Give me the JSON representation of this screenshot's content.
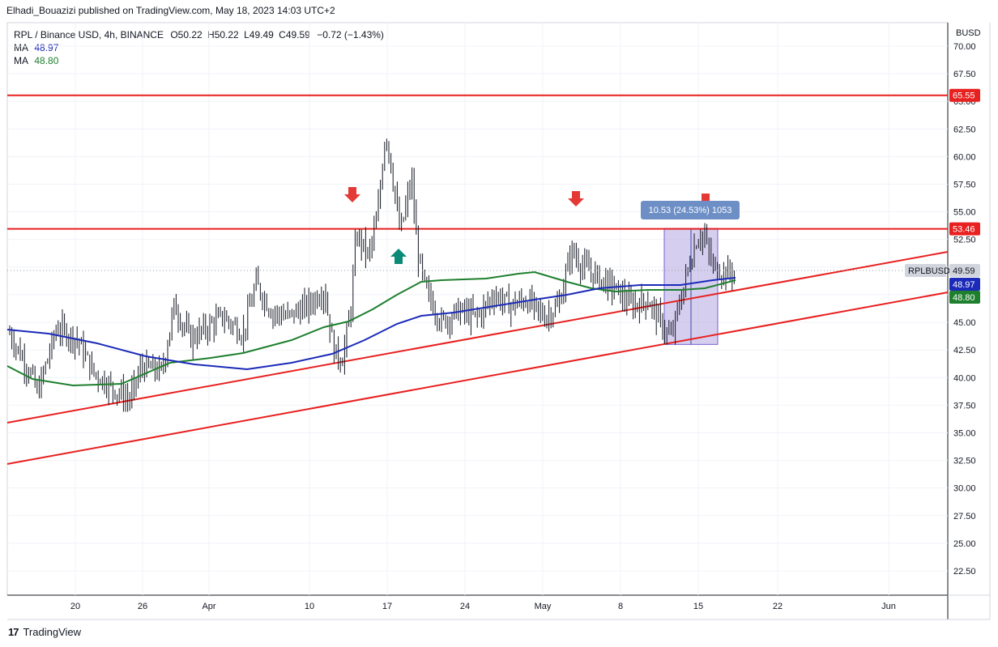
{
  "header": {
    "attribution": "Elhadi_Bouazizi published on TradingView.com, May 18, 2023 14:03 UTC+2"
  },
  "legend": {
    "symbol": "RPL / Binance USD, 4h, BINANCE",
    "open_label": "O",
    "open": "50.22",
    "high_label": "H",
    "high": "50.22",
    "low_label": "L",
    "low": "49.49",
    "close_label": "C",
    "close": "49.59",
    "change": "−0.72 (−1.43%)",
    "ma1_label": "MA",
    "ma1_value": "48.97",
    "ma2_label": "MA",
    "ma2_value": "48.80"
  },
  "axis": {
    "currency": "BUSD",
    "y_ticks": [
      "70.00",
      "67.50",
      "65.00",
      "62.50",
      "60.00",
      "57.50",
      "55.00",
      "52.50",
      "50.00",
      "47.50",
      "45.00",
      "42.50",
      "40.00",
      "37.50",
      "35.00",
      "32.50",
      "30.00",
      "27.50",
      "25.00",
      "22.50"
    ],
    "x_ticks": [
      "20",
      "26",
      "Apr",
      "10",
      "17",
      "24",
      "May",
      "8",
      "15",
      "22",
      "Jun"
    ]
  },
  "price_badges": {
    "resistance_high": "65.55",
    "resistance_mid": "53.46",
    "symbol_tag": "RPLBUSD",
    "last_price": "49.59",
    "ma1": "48.97",
    "ma2": "48.80"
  },
  "measure": {
    "label": "10.53 (24.53%) 1053"
  },
  "footer": {
    "brand": "TradingView",
    "logo": "17"
  },
  "colors": {
    "ma_blue": "#1b2ab8",
    "ma_green": "#1e7f2e",
    "lines_red": "#e8201f",
    "arrow_red": "#e53935",
    "arrow_teal": "#0b8a77",
    "measure_box": "#b3a6e0",
    "measure_label": "#6d8fc6"
  },
  "chart_data": {
    "type": "line",
    "title": "RPL / Binance USD, 4h, BINANCE",
    "ylim": [
      20.0,
      72.0
    ],
    "y_scale": "linear",
    "grid": true,
    "price_series_approx": [
      {
        "date": "Mar 14",
        "close": 44.0
      },
      {
        "date": "Mar 16",
        "close": 40.5
      },
      {
        "date": "Mar 18",
        "close": 44.5
      },
      {
        "date": "Mar 20",
        "close": 42.0
      },
      {
        "date": "Mar 22",
        "close": 40.5
      },
      {
        "date": "Mar 24",
        "close": 38.5
      },
      {
        "date": "Mar 26",
        "close": 40.5
      },
      {
        "date": "Mar 28",
        "close": 44.0
      },
      {
        "date": "Mar 30",
        "close": 46.5
      },
      {
        "date": "Apr 1",
        "close": 44.5
      },
      {
        "date": "Apr 3",
        "close": 45.0
      },
      {
        "date": "Apr 5",
        "close": 46.5
      },
      {
        "date": "Apr 7",
        "close": 47.5
      },
      {
        "date": "Apr 9",
        "close": 45.5
      },
      {
        "date": "Apr 11",
        "close": 47.0
      },
      {
        "date": "Apr 13",
        "close": 43.0
      },
      {
        "date": "Apr 14",
        "close": 53.0
      },
      {
        "date": "Apr 16",
        "close": 56.0
      },
      {
        "date": "Apr 17",
        "close": 63.0
      },
      {
        "date": "Apr 18",
        "close": 57.0
      },
      {
        "date": "Apr 19",
        "close": 55.5
      },
      {
        "date": "Apr 21",
        "close": 48.5
      },
      {
        "date": "Apr 23",
        "close": 46.5
      },
      {
        "date": "Apr 25",
        "close": 47.0
      },
      {
        "date": "Apr 27",
        "close": 47.0
      },
      {
        "date": "Apr 29",
        "close": 46.5
      },
      {
        "date": "May 1",
        "close": 47.0
      },
      {
        "date": "May 3",
        "close": 51.5
      },
      {
        "date": "May 5",
        "close": 49.5
      },
      {
        "date": "May 7",
        "close": 48.0
      },
      {
        "date": "May 9",
        "close": 47.0
      },
      {
        "date": "May 11",
        "close": 43.5
      },
      {
        "date": "May 13",
        "close": 50.0
      },
      {
        "date": "May 15",
        "close": 53.0
      },
      {
        "date": "May 16",
        "close": 49.5
      },
      {
        "date": "May 18",
        "close": 49.59
      }
    ],
    "ma_series": [
      {
        "name": "MA",
        "value": 48.97
      },
      {
        "name": "MA",
        "value": 48.8
      }
    ],
    "horizontal_levels": [
      65.55,
      53.46
    ],
    "measure_range": {
      "from": 43.0,
      "to": 53.5,
      "label": "10.53 (24.53%) 1053"
    }
  }
}
